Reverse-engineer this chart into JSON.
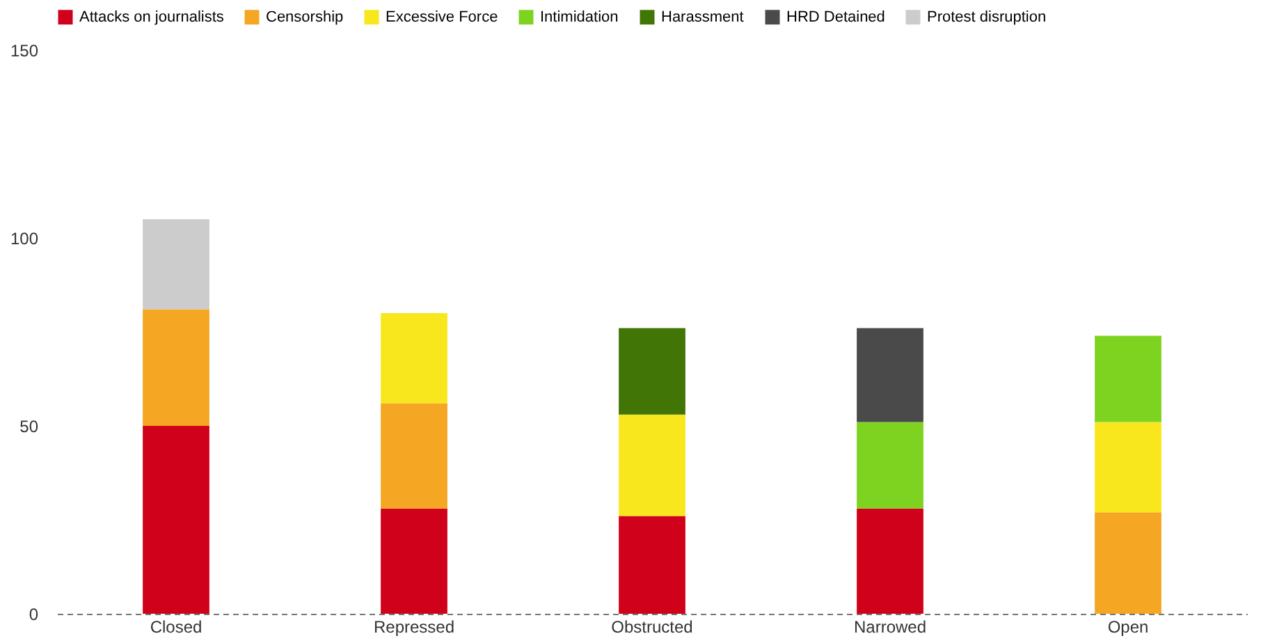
{
  "chart_data": {
    "type": "bar",
    "stacked": true,
    "categories": [
      "Closed",
      "Repressed",
      "Obstructed",
      "Narrowed",
      "Open"
    ],
    "series": [
      {
        "name": "Attacks on journalists",
        "color": "#d0021b",
        "values": [
          50,
          28,
          26,
          28,
          null
        ]
      },
      {
        "name": "Censorship",
        "color": "#f5a623",
        "values": [
          31,
          28,
          null,
          null,
          27
        ]
      },
      {
        "name": "Excessive Force",
        "color": "#f8e71c",
        "values": [
          null,
          24,
          27,
          null,
          24
        ]
      },
      {
        "name": "Intimidation",
        "color": "#7ed321",
        "values": [
          null,
          null,
          null,
          23,
          23
        ]
      },
      {
        "name": "Harassment",
        "color": "#417505",
        "values": [
          null,
          null,
          23,
          null,
          null
        ]
      },
      {
        "name": "HRD Detained",
        "color": "#4a4a4a",
        "values": [
          null,
          null,
          null,
          25,
          null
        ]
      },
      {
        "name": "Protest disruption",
        "color": "#cccccc",
        "values": [
          24,
          null,
          null,
          null,
          null
        ]
      }
    ],
    "ylim": [
      0,
      150
    ],
    "yticks": [
      0,
      50,
      100,
      150
    ],
    "grid": false,
    "legend": "top left"
  }
}
